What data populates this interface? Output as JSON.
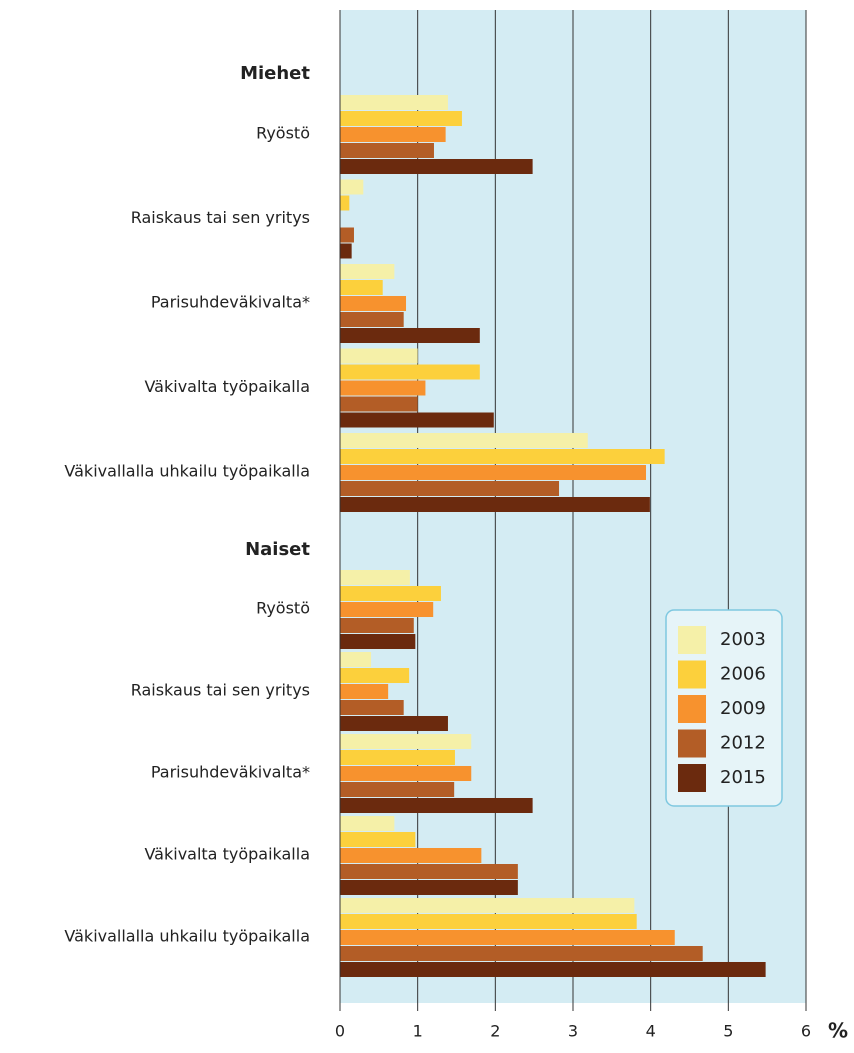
{
  "chart_data": {
    "type": "bar",
    "orientation": "horizontal",
    "groups": [
      {
        "name": "Miehet",
        "categories": [
          "Ryöstö",
          "Raiskaus tai sen yritys",
          "Parisuhdeväkivalta*",
          "Väkivalta työpaikalla",
          "Väkivallalla uhkailu työpaikalla"
        ]
      },
      {
        "name": "Naiset",
        "categories": [
          "Ryöstö",
          "Raiskaus tai sen yritys",
          "Parisuhdeväkivalta*",
          "Väkivalta työpaikalla",
          "Väkivallalla uhkailu työpaikalla"
        ]
      }
    ],
    "series": [
      {
        "name": "2003",
        "color": "#f5f0a8",
        "values": [
          1.39,
          0.3,
          0.7,
          1.0,
          3.19,
          0.9,
          0.4,
          1.69,
          0.7,
          3.79
        ]
      },
      {
        "name": "2006",
        "color": "#fcd03c",
        "values": [
          1.57,
          0.12,
          0.55,
          1.8,
          4.18,
          1.3,
          0.89,
          1.48,
          0.97,
          3.82
        ]
      },
      {
        "name": "2009",
        "color": "#f7922e",
        "values": [
          1.36,
          null,
          0.85,
          1.1,
          3.94,
          1.2,
          0.62,
          1.69,
          1.82,
          4.31
        ]
      },
      {
        "name": "2012",
        "color": "#b35d26",
        "values": [
          1.21,
          0.18,
          0.82,
          1.0,
          2.82,
          0.95,
          0.82,
          1.47,
          2.29,
          4.67
        ]
      },
      {
        "name": "2015",
        "color": "#6b2a0e",
        "values": [
          2.48,
          0.15,
          1.8,
          1.98,
          3.99,
          0.97,
          1.39,
          2.48,
          2.29,
          5.48
        ]
      }
    ],
    "xlabel": "%",
    "xlim": [
      0,
      6
    ],
    "xticks": [
      0,
      1,
      2,
      3,
      4,
      5,
      6
    ],
    "grid": true
  }
}
